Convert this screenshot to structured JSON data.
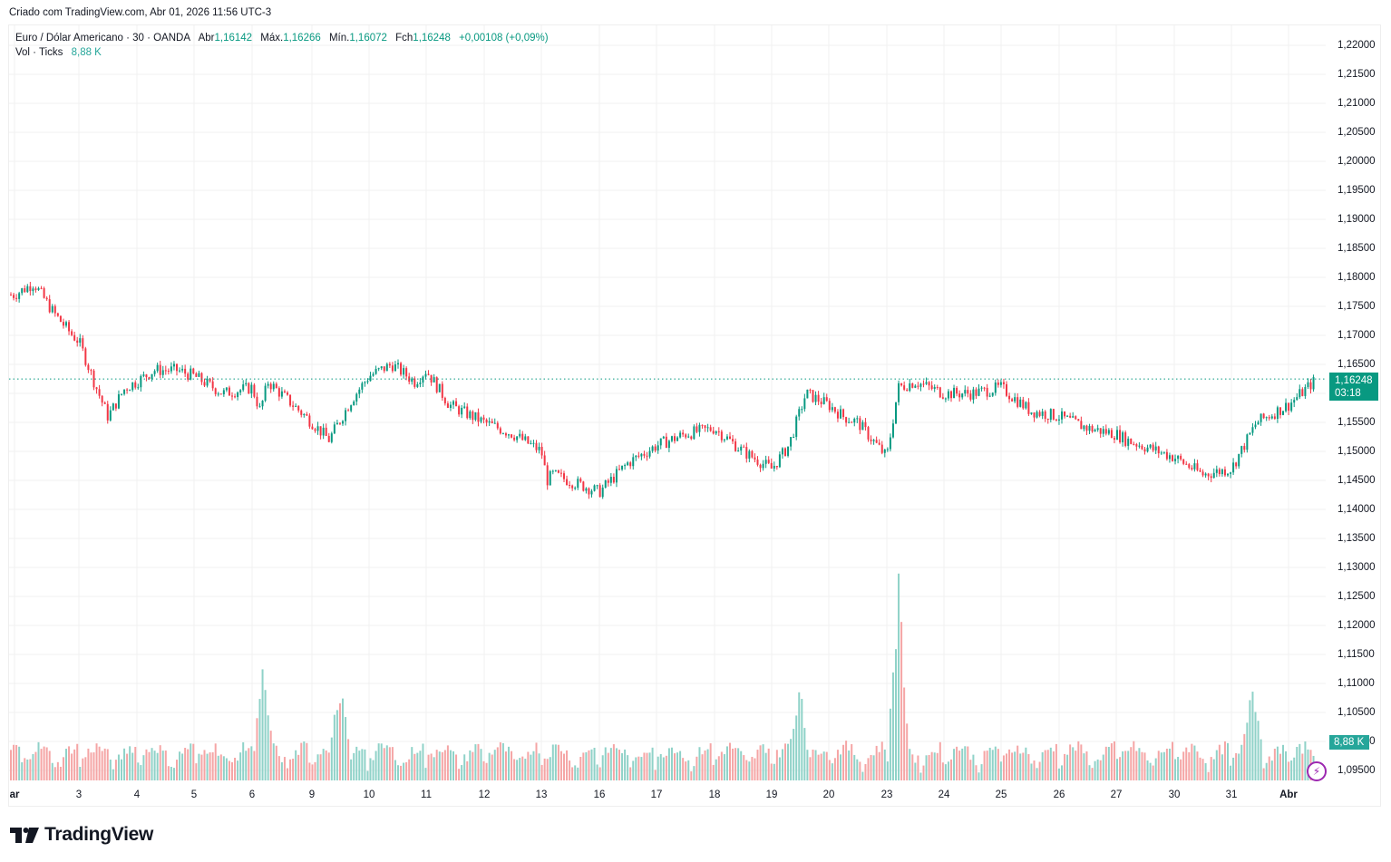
{
  "credit": "Criado com TradingView.com, Abr 01, 2026 11:56 UTC-3",
  "legend": {
    "symbol": "Euro / Dólar Americano · 30 · OANDA",
    "open_label": "Abr",
    "open": "1,16142",
    "high_label": "Máx.",
    "high": "1,16266",
    "low_label": "Mín.",
    "low": "1,16072",
    "close_label": "Fch",
    "close": "1,16248",
    "change": "+0,00108 (+0,09%)",
    "volume_label": "Vol · Ticks",
    "volume": "8,88 K"
  },
  "price_tag": {
    "price": "1,16248",
    "countdown": "03:18"
  },
  "volume_tag": "8,88 K",
  "logo": {
    "text": "TradingView",
    "icon": "tradingview-logo-icon"
  },
  "status_icon": "lightning-icon",
  "colors": {
    "up": "#089981",
    "down": "#f23645",
    "vol_up": "#8fd2c8",
    "vol_down": "#f5a5a5",
    "grid": "#f0f3fa",
    "tag": "#089981"
  },
  "chart_data": {
    "type": "candlestick",
    "title": "Euro / Dólar Americano · 30 · OANDA",
    "xlabel": "",
    "ylabel": "",
    "ylim": [
      1.0925,
      1.2235
    ],
    "y_ticks": [
      "1,22000",
      "1,21500",
      "1,21000",
      "1,20500",
      "1,20000",
      "1,19500",
      "1,19000",
      "1,18500",
      "1,18000",
      "1,17500",
      "1,17000",
      "1,16500",
      "1,16000",
      "1,15500",
      "1,15000",
      "1,14500",
      "1,14000",
      "1,13500",
      "1,13000",
      "1,12500",
      "1,12000",
      "1,11500",
      "1,11000",
      "1,10500",
      "1,10000",
      "1,09500"
    ],
    "x_ticks": [
      "ar",
      "3",
      "4",
      "5",
      "6",
      "9",
      "10",
      "11",
      "12",
      "13",
      "16",
      "17",
      "18",
      "19",
      "20",
      "23",
      "24",
      "25",
      "26",
      "27",
      "30",
      "31",
      "Abr"
    ],
    "last_price": 1.16248,
    "legend": [
      "Vol · Ticks"
    ],
    "close_path": [
      {
        "x": "2",
        "price": 1.177
      },
      {
        "x": "2.3",
        "price": 1.179
      },
      {
        "x": "2.6",
        "price": 1.174
      },
      {
        "x": "2.9",
        "price": 1.17
      },
      {
        "x": "3",
        "price": 1.169
      },
      {
        "x": "3.3",
        "price": 1.161
      },
      {
        "x": "3.5",
        "price": 1.156
      },
      {
        "x": "3.8",
        "price": 1.161
      },
      {
        "x": "4",
        "price": 1.162
      },
      {
        "x": "4.3",
        "price": 1.164
      },
      {
        "x": "4.7",
        "price": 1.164
      },
      {
        "x": "5",
        "price": 1.163
      },
      {
        "x": "5.5",
        "price": 1.16
      },
      {
        "x": "6",
        "price": 1.161
      },
      {
        "x": "6.4",
        "price": 1.157
      },
      {
        "x": "6.8",
        "price": 1.162
      },
      {
        "x": "9",
        "price": 1.155
      },
      {
        "x": "9.3",
        "price": 1.152
      },
      {
        "x": "9.7",
        "price": 1.159
      },
      {
        "x": "10",
        "price": 1.163
      },
      {
        "x": "10.4",
        "price": 1.165
      },
      {
        "x": "10.8",
        "price": 1.162
      },
      {
        "x": "11",
        "price": 1.164
      },
      {
        "x": "11.4",
        "price": 1.158
      },
      {
        "x": "12",
        "price": 1.155
      },
      {
        "x": "12.5",
        "price": 1.153
      },
      {
        "x": "13",
        "price": 1.15
      },
      {
        "x": "13.3",
        "price": 1.145
      },
      {
        "x": "13.6",
        "price": 1.146
      },
      {
        "x": "16",
        "price": 1.143
      },
      {
        "x": "16.5",
        "price": 1.148
      },
      {
        "x": "17",
        "price": 1.151
      },
      {
        "x": "17.5",
        "price": 1.153
      },
      {
        "x": "18",
        "price": 1.154
      },
      {
        "x": "18.5",
        "price": 1.15
      },
      {
        "x": "19",
        "price": 1.147
      },
      {
        "x": "19.3",
        "price": 1.151
      },
      {
        "x": "19.6",
        "price": 1.16
      },
      {
        "x": "20",
        "price": 1.158
      },
      {
        "x": "20.5",
        "price": 1.156
      },
      {
        "x": "21",
        "price": 1.155
      },
      {
        "x": "23",
        "price": 1.149
      },
      {
        "x": "23.2",
        "price": 1.161
      },
      {
        "x": "23.5",
        "price": 1.162
      },
      {
        "x": "24",
        "price": 1.16
      },
      {
        "x": "24.5",
        "price": 1.16
      },
      {
        "x": "25",
        "price": 1.161
      },
      {
        "x": "25.5",
        "price": 1.157
      },
      {
        "x": "26",
        "price": 1.156
      },
      {
        "x": "26.5",
        "price": 1.154
      },
      {
        "x": "27",
        "price": 1.153
      },
      {
        "x": "27.5",
        "price": 1.152
      },
      {
        "x": "30",
        "price": 1.149
      },
      {
        "x": "30.5",
        "price": 1.146
      },
      {
        "x": "31",
        "price": 1.147
      },
      {
        "x": "31.3",
        "price": 1.151
      },
      {
        "x": "31.6",
        "price": 1.155
      },
      {
        "x": "Abr",
        "price": 1.158
      },
      {
        "x": "Abr+",
        "price": 1.16248
      }
    ],
    "volume_spikes": [
      {
        "x": "6.5",
        "level": "high"
      },
      {
        "x": "9.5",
        "level": "high"
      },
      {
        "x": "19.5",
        "level": "high"
      },
      {
        "x": "23.2",
        "level": "max"
      },
      {
        "x": "31.5",
        "level": "high"
      }
    ],
    "grid": true,
    "legend_position": "top-left"
  }
}
